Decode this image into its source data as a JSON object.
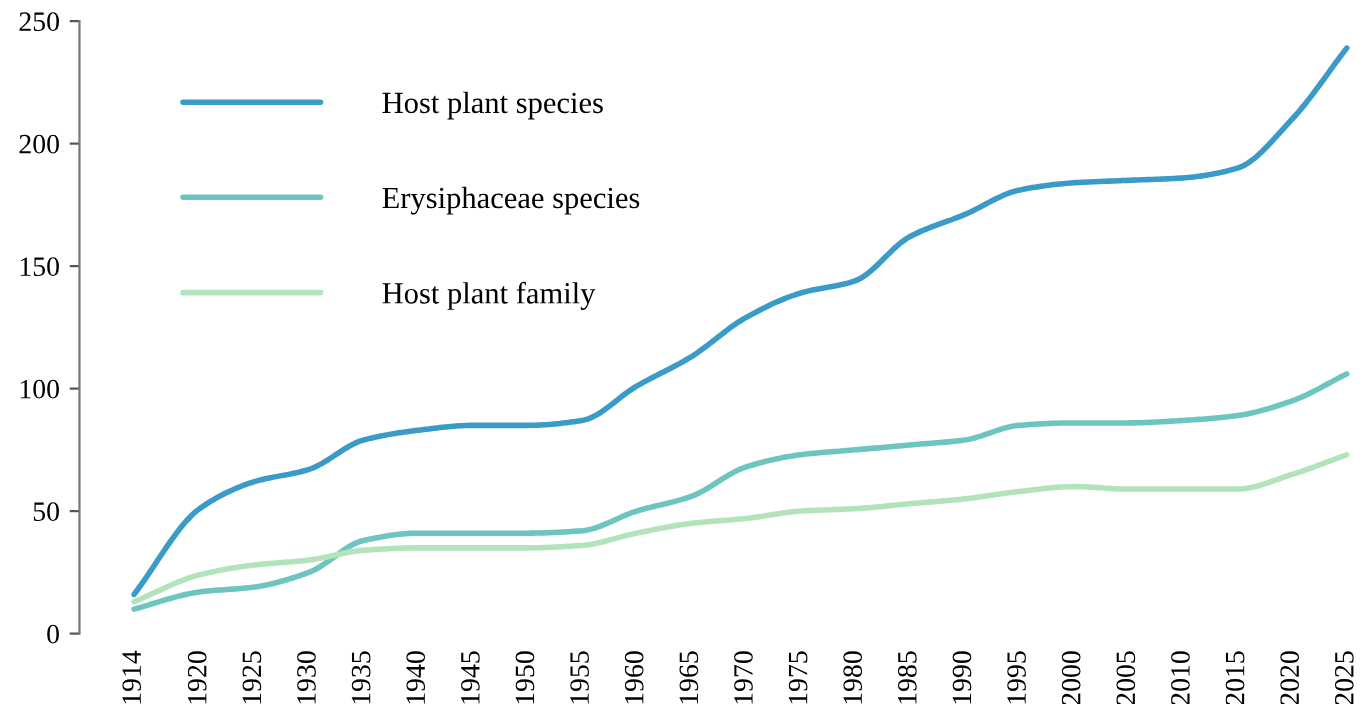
{
  "chart_data": {
    "type": "line",
    "x": [
      1914,
      1920,
      1925,
      1930,
      1935,
      1940,
      1945,
      1950,
      1955,
      1960,
      1965,
      1970,
      1975,
      1980,
      1985,
      1990,
      1995,
      2000,
      2005,
      2010,
      2015,
      2020,
      2025
    ],
    "series": [
      {
        "name": "Host plant species",
        "color": "#3a9bc8",
        "values": [
          16,
          51,
          62,
          67,
          79,
          83,
          85,
          85,
          87,
          101,
          113,
          129,
          139,
          144,
          162,
          171,
          181,
          184,
          185,
          186,
          190,
          210,
          239
        ]
      },
      {
        "name": "Erysiphaceae species",
        "color": "#6cc6bf",
        "values": [
          10,
          17,
          19,
          25,
          38,
          41,
          41,
          41,
          42,
          50,
          56,
          68,
          73,
          75,
          77,
          79,
          85,
          86,
          86,
          87,
          89,
          95,
          106
        ]
      },
      {
        "name": "Host plant family",
        "color": "#b3e3bb",
        "values": [
          13,
          24,
          28,
          30,
          34,
          35,
          35,
          35,
          36,
          41,
          45,
          47,
          50,
          51,
          53,
          55,
          58,
          60,
          59,
          59,
          59,
          65,
          73
        ]
      }
    ],
    "xlim": [
      1909,
      2025
    ],
    "xticks": [
      1914,
      1920,
      1925,
      1930,
      1935,
      1940,
      1945,
      1950,
      1955,
      1960,
      1965,
      1970,
      1975,
      1980,
      1985,
      1990,
      1995,
      2000,
      2005,
      2010,
      2015,
      2020,
      2025
    ],
    "ylim": [
      0,
      250
    ],
    "yticks": [
      0,
      50,
      100,
      150,
      200,
      250
    ],
    "grid": false,
    "legend": "top left",
    "marker": "none",
    "line_style": "solid"
  }
}
